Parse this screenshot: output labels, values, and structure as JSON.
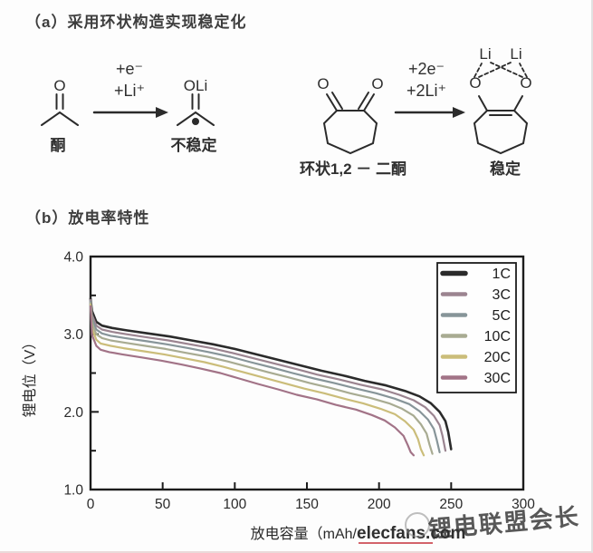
{
  "figure": {
    "section_a": {
      "label": "（a）采用环状构造实现稳定化",
      "reaction1": {
        "reactant_atom": "O",
        "reactant_label": "酮",
        "reagent_line1": "+e⁻",
        "reagent_line2": "+Li⁺",
        "product_atom": "OLi",
        "product_label": "不稳定"
      },
      "reaction2": {
        "reactant_atom_left": "O",
        "reactant_atom_right": "O",
        "reactant_label": "环状1,2 － 二酮",
        "reagent_line1": "+2e⁻",
        "reagent_line2": "+2Li⁺",
        "product_atom_left": "O",
        "product_atom_right": "O",
        "product_li_left": "Li",
        "product_li_right": "Li",
        "product_label": "稳定"
      }
    },
    "section_b": {
      "label": "（b）放电率特性"
    },
    "watermark": {
      "red": "elecfans.com",
      "gray": "锂电联盟会长"
    }
  },
  "chart_data": {
    "type": "line",
    "title": "放电率特性",
    "xlabel": "放电容量（mAh/g）",
    "xlabel_visible": "放电容量（mAh/",
    "ylabel": "锂电位（V）",
    "xlim": [
      0,
      300
    ],
    "ylim": [
      1.0,
      4.0
    ],
    "x_ticks": [
      0,
      50,
      100,
      150,
      200,
      250,
      300
    ],
    "y_ticks": [
      4.0,
      3.0,
      2.0,
      1.0
    ],
    "y_minor_ticks": [
      3.5,
      2.5,
      1.5
    ],
    "grid": false,
    "legend_position": "top-right",
    "frame_color": "#1c1c1c",
    "series": [
      {
        "name": "1C",
        "color": "#2b2b2b",
        "width": 2.6,
        "points": [
          [
            0,
            3.46
          ],
          [
            1,
            3.3
          ],
          [
            4,
            3.16
          ],
          [
            8,
            3.11
          ],
          [
            15,
            3.08
          ],
          [
            25,
            3.05
          ],
          [
            40,
            3.01
          ],
          [
            55,
            2.97
          ],
          [
            70,
            2.92
          ],
          [
            85,
            2.87
          ],
          [
            100,
            2.81
          ],
          [
            115,
            2.74
          ],
          [
            130,
            2.67
          ],
          [
            145,
            2.6
          ],
          [
            160,
            2.53
          ],
          [
            175,
            2.47
          ],
          [
            190,
            2.4
          ],
          [
            205,
            2.34
          ],
          [
            218,
            2.27
          ],
          [
            228,
            2.2
          ],
          [
            236,
            2.11
          ],
          [
            242,
            2.0
          ],
          [
            246,
            1.88
          ],
          [
            248,
            1.74
          ],
          [
            250,
            1.52
          ]
        ]
      },
      {
        "name": "3C",
        "color": "#9b8490",
        "width": 2.2,
        "points": [
          [
            0,
            3.44
          ],
          [
            1,
            3.25
          ],
          [
            4,
            3.11
          ],
          [
            8,
            3.06
          ],
          [
            15,
            3.03
          ],
          [
            25,
            3.0
          ],
          [
            39,
            2.96
          ],
          [
            54,
            2.92
          ],
          [
            69,
            2.87
          ],
          [
            84,
            2.82
          ],
          [
            98,
            2.76
          ],
          [
            113,
            2.69
          ],
          [
            128,
            2.62
          ],
          [
            143,
            2.55
          ],
          [
            157,
            2.48
          ],
          [
            172,
            2.42
          ],
          [
            187,
            2.35
          ],
          [
            202,
            2.29
          ],
          [
            214,
            2.22
          ],
          [
            224,
            2.15
          ],
          [
            232,
            2.06
          ],
          [
            238,
            1.95
          ],
          [
            242,
            1.83
          ],
          [
            244,
            1.69
          ],
          [
            246,
            1.5
          ]
        ]
      },
      {
        "name": "5C",
        "color": "#879599",
        "width": 2.2,
        "points": [
          [
            0,
            3.42
          ],
          [
            1,
            3.2
          ],
          [
            4,
            3.06
          ],
          [
            8,
            3.01
          ],
          [
            14,
            2.98
          ],
          [
            24,
            2.95
          ],
          [
            39,
            2.91
          ],
          [
            53,
            2.87
          ],
          [
            68,
            2.82
          ],
          [
            82,
            2.77
          ],
          [
            97,
            2.71
          ],
          [
            111,
            2.64
          ],
          [
            126,
            2.57
          ],
          [
            140,
            2.5
          ],
          [
            155,
            2.43
          ],
          [
            169,
            2.37
          ],
          [
            184,
            2.3
          ],
          [
            198,
            2.24
          ],
          [
            211,
            2.17
          ],
          [
            221,
            2.1
          ],
          [
            228,
            2.01
          ],
          [
            234,
            1.9
          ],
          [
            238,
            1.78
          ],
          [
            240,
            1.64
          ],
          [
            242,
            1.48
          ]
        ]
      },
      {
        "name": "10C",
        "color": "#a8ab92",
        "width": 2.2,
        "points": [
          [
            0,
            3.4
          ],
          [
            1,
            3.14
          ],
          [
            4,
            3.0
          ],
          [
            8,
            2.95
          ],
          [
            14,
            2.92
          ],
          [
            24,
            2.89
          ],
          [
            38,
            2.85
          ],
          [
            52,
            2.81
          ],
          [
            66,
            2.76
          ],
          [
            81,
            2.71
          ],
          [
            95,
            2.65
          ],
          [
            109,
            2.58
          ],
          [
            123,
            2.51
          ],
          [
            138,
            2.44
          ],
          [
            152,
            2.37
          ],
          [
            166,
            2.31
          ],
          [
            180,
            2.24
          ],
          [
            194,
            2.18
          ],
          [
            207,
            2.11
          ],
          [
            216,
            2.04
          ],
          [
            224,
            1.95
          ],
          [
            229,
            1.84
          ],
          [
            233,
            1.72
          ],
          [
            235,
            1.58
          ],
          [
            237,
            1.46
          ]
        ]
      },
      {
        "name": "20C",
        "color": "#cbbd7a",
        "width": 2.2,
        "points": [
          [
            0,
            3.38
          ],
          [
            1,
            3.07
          ],
          [
            4,
            2.93
          ],
          [
            7,
            2.88
          ],
          [
            14,
            2.85
          ],
          [
            23,
            2.82
          ],
          [
            37,
            2.78
          ],
          [
            51,
            2.74
          ],
          [
            65,
            2.69
          ],
          [
            79,
            2.64
          ],
          [
            92,
            2.58
          ],
          [
            106,
            2.51
          ],
          [
            120,
            2.44
          ],
          [
            134,
            2.37
          ],
          [
            148,
            2.3
          ],
          [
            162,
            2.24
          ],
          [
            176,
            2.17
          ],
          [
            189,
            2.11
          ],
          [
            201,
            2.04
          ],
          [
            211,
            1.97
          ],
          [
            218,
            1.88
          ],
          [
            224,
            1.77
          ],
          [
            227,
            1.65
          ],
          [
            229,
            1.52
          ],
          [
            231,
            1.44
          ]
        ]
      },
      {
        "name": "30C",
        "color": "#a27387",
        "width": 2.2,
        "points": [
          [
            0,
            3.36
          ],
          [
            1,
            2.99
          ],
          [
            4,
            2.85
          ],
          [
            7,
            2.8
          ],
          [
            13,
            2.77
          ],
          [
            22,
            2.74
          ],
          [
            36,
            2.7
          ],
          [
            49,
            2.66
          ],
          [
            63,
            2.61
          ],
          [
            76,
            2.56
          ],
          [
            90,
            2.5
          ],
          [
            103,
            2.43
          ],
          [
            116,
            2.36
          ],
          [
            130,
            2.29
          ],
          [
            143,
            2.22
          ],
          [
            157,
            2.16
          ],
          [
            170,
            2.09
          ],
          [
            184,
            2.03
          ],
          [
            195,
            1.96
          ],
          [
            204,
            1.89
          ],
          [
            211,
            1.8
          ],
          [
            217,
            1.69
          ],
          [
            220,
            1.57
          ],
          [
            222,
            1.48
          ],
          [
            224,
            1.44
          ]
        ]
      }
    ]
  }
}
